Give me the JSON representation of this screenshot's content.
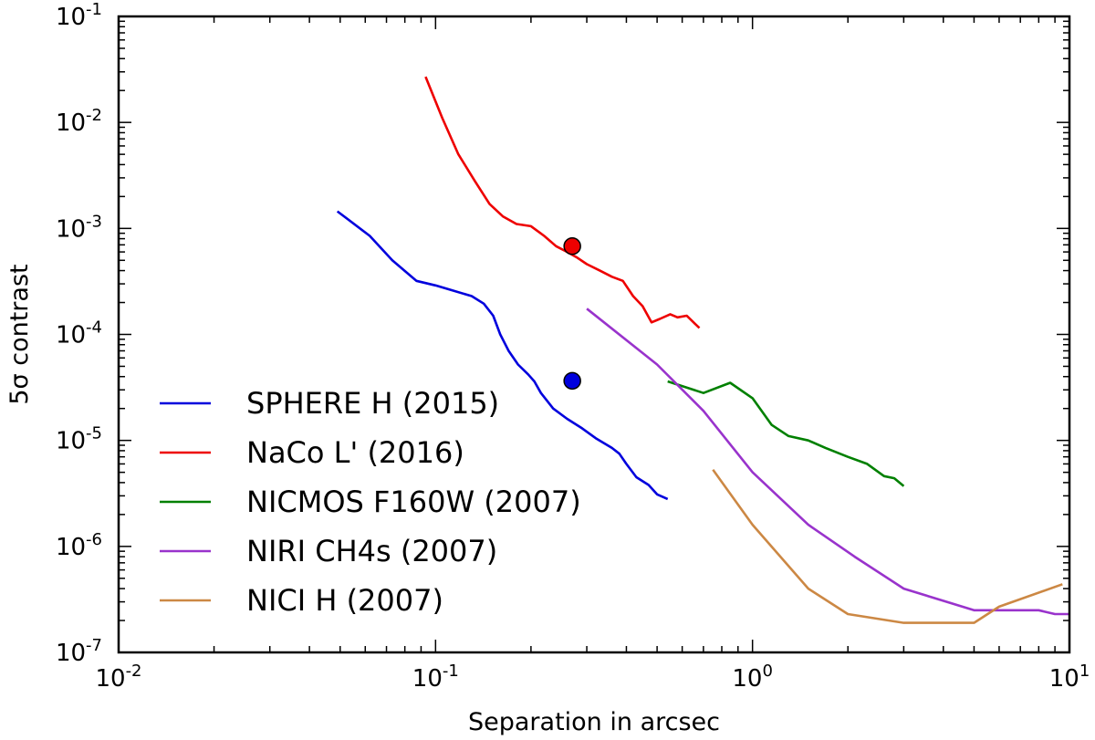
{
  "chart_data": {
    "type": "line",
    "xscale": "log",
    "yscale": "log",
    "xlim": [
      0.01,
      10
    ],
    "ylim": [
      1e-07,
      0.1
    ],
    "xlabel": "Separation in arcsec",
    "ylabel": "5σ contrast",
    "x_ticks": [
      {
        "value": 0.01,
        "base": "10",
        "exp": "-2"
      },
      {
        "value": 0.1,
        "base": "10",
        "exp": "-1"
      },
      {
        "value": 1,
        "base": "10",
        "exp": "0"
      },
      {
        "value": 10,
        "base": "10",
        "exp": "1"
      }
    ],
    "y_ticks": [
      {
        "value": 1e-07,
        "base": "10",
        "exp": "-7"
      },
      {
        "value": 1e-06,
        "base": "10",
        "exp": "-6"
      },
      {
        "value": 1e-05,
        "base": "10",
        "exp": "-5"
      },
      {
        "value": 0.0001,
        "base": "10",
        "exp": "-4"
      },
      {
        "value": 0.001,
        "base": "10",
        "exp": "-3"
      },
      {
        "value": 0.01,
        "base": "10",
        "exp": "-2"
      },
      {
        "value": 0.1,
        "base": "10",
        "exp": "-1"
      }
    ],
    "legend_position": "lower-left",
    "series": [
      {
        "name": "SPHERE H (2015)",
        "color": "#0000dd",
        "points": [
          [
            0.049,
            0.00145
          ],
          [
            0.062,
            0.00085
          ],
          [
            0.073,
            0.0005
          ],
          [
            0.087,
            0.00032
          ],
          [
            0.1,
            0.00029
          ],
          [
            0.113,
            0.00026
          ],
          [
            0.13,
            0.00023
          ],
          [
            0.142,
            0.000195
          ],
          [
            0.152,
            0.00015
          ],
          [
            0.16,
            0.0001
          ],
          [
            0.17,
            7e-05
          ],
          [
            0.182,
            5.2e-05
          ],
          [
            0.196,
            4.2e-05
          ],
          [
            0.205,
            3.6e-05
          ],
          [
            0.215,
            2.8e-05
          ],
          [
            0.235,
            2e-05
          ],
          [
            0.26,
            1.6e-05
          ],
          [
            0.29,
            1.3e-05
          ],
          [
            0.32,
            1.05e-05
          ],
          [
            0.36,
            8.5e-06
          ],
          [
            0.38,
            7.5e-06
          ],
          [
            0.4,
            6e-06
          ],
          [
            0.43,
            4.5e-06
          ],
          [
            0.47,
            3.8e-06
          ],
          [
            0.5,
            3.1e-06
          ],
          [
            0.54,
            2.8e-06
          ]
        ]
      },
      {
        "name": "NaCo L' (2016)",
        "color": "#ee0000",
        "points": [
          [
            0.093,
            0.027
          ],
          [
            0.105,
            0.011
          ],
          [
            0.118,
            0.005
          ],
          [
            0.133,
            0.0028
          ],
          [
            0.148,
            0.0017
          ],
          [
            0.163,
            0.0013
          ],
          [
            0.18,
            0.0011
          ],
          [
            0.2,
            0.00105
          ],
          [
            0.22,
            0.00085
          ],
          [
            0.24,
            0.00068
          ],
          [
            0.26,
            0.0006
          ],
          [
            0.28,
            0.00053
          ],
          [
            0.3,
            0.00046
          ],
          [
            0.33,
            0.0004
          ],
          [
            0.36,
            0.00035
          ],
          [
            0.39,
            0.00032
          ],
          [
            0.42,
            0.00023
          ],
          [
            0.45,
            0.000185
          ],
          [
            0.48,
            0.00013
          ],
          [
            0.51,
            0.00014
          ],
          [
            0.55,
            0.000155
          ],
          [
            0.58,
            0.000145
          ],
          [
            0.62,
            0.00015
          ],
          [
            0.66,
            0.000125
          ],
          [
            0.68,
            0.000115
          ]
        ]
      },
      {
        "name": "NICMOS F160W (2007)",
        "color": "#008000",
        "points": [
          [
            0.54,
            3.6e-05
          ],
          [
            0.7,
            2.8e-05
          ],
          [
            0.85,
            3.5e-05
          ],
          [
            1.0,
            2.5e-05
          ],
          [
            1.15,
            1.4e-05
          ],
          [
            1.3,
            1.1e-05
          ],
          [
            1.5,
            1e-05
          ],
          [
            1.7,
            8.5e-06
          ],
          [
            2.0,
            7e-06
          ],
          [
            2.3,
            6e-06
          ],
          [
            2.6,
            4.6e-06
          ],
          [
            2.8,
            4.4e-06
          ],
          [
            3.0,
            3.7e-06
          ]
        ]
      },
      {
        "name": "NIRI CH4s (2007)",
        "color": "#9933cc",
        "points": [
          [
            0.3,
            0.000175
          ],
          [
            0.5,
            5.2e-05
          ],
          [
            0.7,
            1.9e-05
          ],
          [
            1.0,
            5e-06
          ],
          [
            1.5,
            1.6e-06
          ],
          [
            2.1,
            8e-07
          ],
          [
            3.0,
            4e-07
          ],
          [
            5.0,
            2.5e-07
          ],
          [
            8.0,
            2.5e-07
          ],
          [
            9.0,
            2.3e-07
          ],
          [
            10.0,
            2.3e-07
          ]
        ]
      },
      {
        "name": "NICI H (2007)",
        "color": "#cc8844",
        "points": [
          [
            0.75,
            5.3e-06
          ],
          [
            1.0,
            1.6e-06
          ],
          [
            1.5,
            4e-07
          ],
          [
            2.0,
            2.3e-07
          ],
          [
            3.0,
            1.9e-07
          ],
          [
            5.0,
            1.9e-07
          ],
          [
            6.0,
            2.7e-07
          ],
          [
            9.5,
            4.4e-07
          ]
        ]
      }
    ],
    "markers": [
      {
        "name": "naco-detection",
        "x": 0.27,
        "y": 0.00068,
        "color": "#ee0000"
      },
      {
        "name": "sphere-detection",
        "x": 0.27,
        "y": 3.65e-05,
        "color": "#0000dd"
      }
    ]
  }
}
